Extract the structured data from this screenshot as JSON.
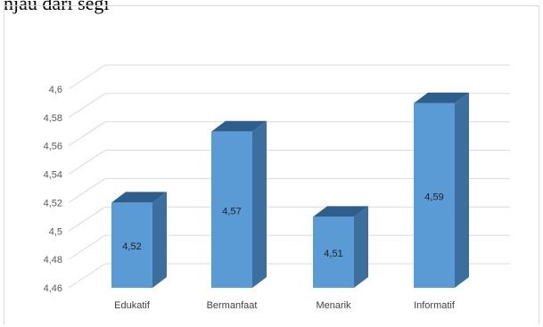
{
  "caption": {
    "partial_text": "njau dari segi"
  },
  "chart_data": {
    "type": "bar",
    "categories": [
      "Edukatif",
      "Bermanfaat",
      "Menarik",
      "Informatif"
    ],
    "values": [
      4.52,
      4.57,
      4.51,
      4.59
    ],
    "data_labels": [
      "4,52",
      "4,57",
      "4,51",
      "4,59"
    ],
    "y_ticks": [
      "4,46",
      "4,48",
      "4,5",
      "4,52",
      "4,54",
      "4,56",
      "4,58",
      "4,6"
    ],
    "ylim": [
      4.46,
      4.6
    ],
    "grid": true,
    "style": "3d-column",
    "colors": {
      "front": "#5b9bd5",
      "side": "#3a6f9e",
      "top": "#2e5f8c",
      "grid": "#d9d9d9"
    }
  }
}
